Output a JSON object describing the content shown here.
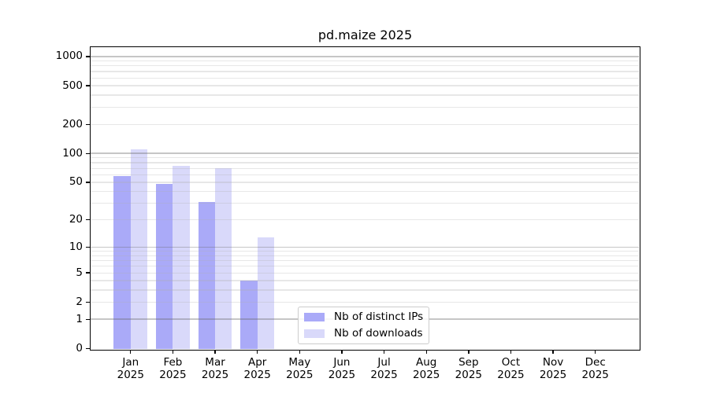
{
  "chart_data": {
    "type": "bar",
    "title": "pd.maize 2025",
    "categories": [
      "Jan",
      "Feb",
      "Mar",
      "Apr",
      "May",
      "Jun",
      "Jul",
      "Aug",
      "Sep",
      "Oct",
      "Nov",
      "Dec"
    ],
    "category_year": "2025",
    "series": [
      {
        "name": "Nb of distinct IPs",
        "color": "#aaaaf8",
        "values": [
          58,
          48,
          31,
          4,
          0,
          0,
          0,
          0,
          0,
          0,
          0,
          0
        ]
      },
      {
        "name": "Nb of downloads",
        "color": "#d9d9fa",
        "values": [
          110,
          75,
          70,
          13,
          0,
          0,
          0,
          0,
          0,
          0,
          0,
          0
        ]
      }
    ],
    "xlabel": "",
    "ylabel": "",
    "yscale": "log10(value+1)",
    "ylim": [
      0,
      1258
    ],
    "ylog_top": 3.1,
    "yticks": [
      0,
      1,
      2,
      5,
      10,
      20,
      50,
      100,
      200,
      500,
      1000
    ],
    "y_major_gridlines": [
      1,
      10,
      100,
      1000
    ],
    "y_minor_gridlines": [
      2,
      3,
      4,
      5,
      6,
      7,
      8,
      9,
      20,
      30,
      40,
      50,
      60,
      70,
      80,
      90,
      200,
      300,
      400,
      500,
      600,
      700,
      800,
      900
    ],
    "grid": true,
    "legend_position": "lower center",
    "colors": {
      "distinct_ips": "#aaaaf8",
      "downloads": "#d9d9fa",
      "grid_major": "#c6c6c6",
      "grid_minor": "#e7e7e7",
      "axes": "#000000",
      "legend_border": "#cccccc",
      "background": "#ffffff"
    }
  }
}
